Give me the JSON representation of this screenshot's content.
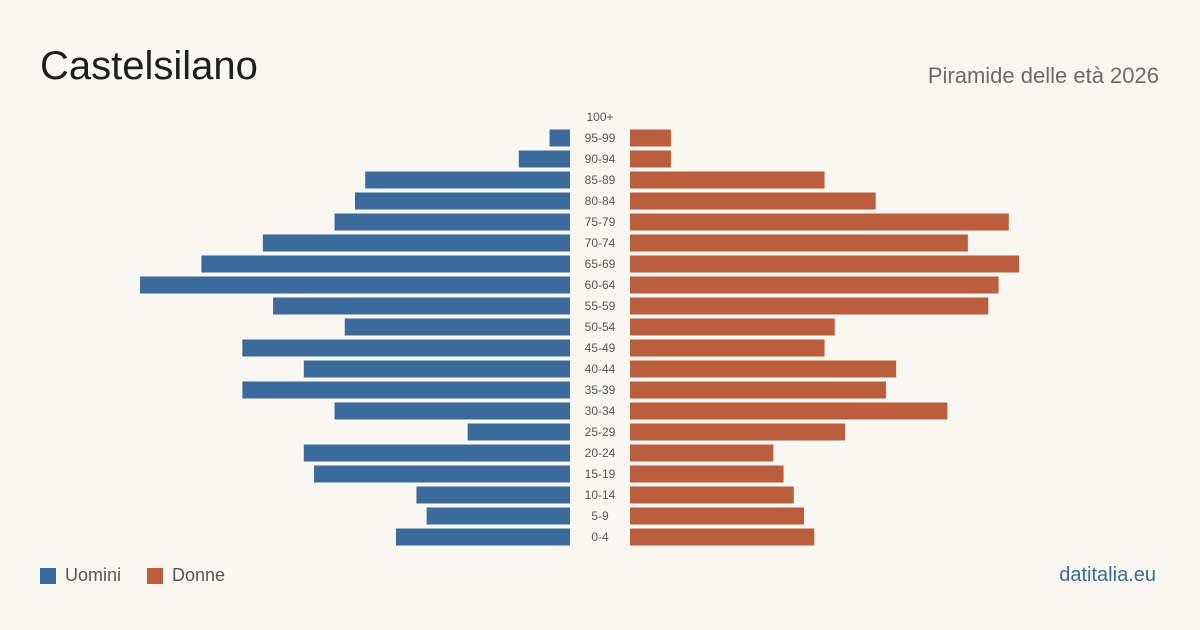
{
  "header": {
    "title": "Castelsilano",
    "subtitle": "Piramide delle età 2026"
  },
  "legend": {
    "men_label": "Uomini",
    "women_label": "Donne"
  },
  "footer": {
    "brand": "datitalia.eu"
  },
  "colors": {
    "men": "#3c6a9a",
    "women": "#bb5e3d",
    "label": "#555555"
  },
  "chart_data": {
    "type": "bar",
    "orientation": "horizontal-pyramid",
    "categories": [
      "100+",
      "95-99",
      "90-94",
      "85-89",
      "80-84",
      "75-79",
      "70-74",
      "65-69",
      "60-64",
      "55-59",
      "50-54",
      "45-49",
      "40-44",
      "35-39",
      "30-34",
      "25-29",
      "20-24",
      "15-19",
      "10-14",
      "5-9",
      "0-4"
    ],
    "series": [
      {
        "name": "Uomini",
        "values": [
          0,
          2,
          5,
          20,
          21,
          23,
          30,
          36,
          42,
          29,
          22,
          32,
          26,
          32,
          23,
          10,
          26,
          25,
          15,
          14,
          17
        ]
      },
      {
        "name": "Donne",
        "values": [
          0,
          4,
          4,
          19,
          24,
          37,
          33,
          38,
          36,
          35,
          20,
          19,
          26,
          25,
          31,
          21,
          14,
          15,
          16,
          17,
          18
        ]
      }
    ],
    "xmax": 42
  }
}
